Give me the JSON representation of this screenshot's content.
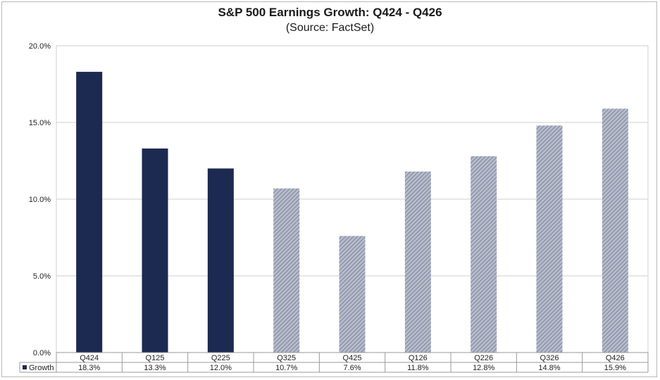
{
  "chart_data": {
    "type": "bar",
    "title": "S&P 500 Earnings Growth: Q424 - Q426",
    "subtitle": "(Source: FactSet)",
    "categories": [
      "Q424",
      "Q125",
      "Q225",
      "Q325",
      "Q425",
      "Q126",
      "Q226",
      "Q326",
      "Q426"
    ],
    "series": [
      {
        "name": "Growth",
        "values": [
          18.3,
          13.3,
          12.0,
          10.7,
          7.6,
          11.8,
          12.8,
          14.8,
          15.9
        ],
        "value_labels": [
          "18.3%",
          "13.3%",
          "12.0%",
          "10.7%",
          "7.6%",
          "11.8%",
          "12.8%",
          "14.8%",
          "15.9%"
        ],
        "actual_count": 3
      }
    ],
    "ylim": [
      0,
      20
    ],
    "yticks": [
      0,
      5,
      10,
      15,
      20
    ],
    "ytick_labels": [
      "0.0%",
      "5.0%",
      "10.0%",
      "15.0%",
      "20.0%"
    ],
    "grid": true,
    "legend": "data-table-below",
    "colors": {
      "actual": "#1c2a52",
      "estimate_fill": "#b7bccb",
      "estimate_stripe": "#7c8399"
    }
  }
}
